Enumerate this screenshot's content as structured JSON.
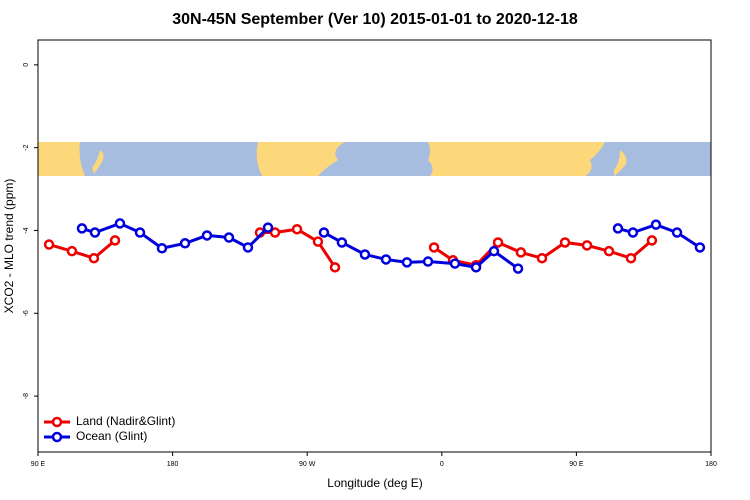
{
  "chart_data": {
    "type": "line",
    "title": "30N-45N September (Ver 10)   2015-01-01 to 2020-12-18",
    "x_label": "Longitude (deg E)",
    "y_label": "XCO2 - MLO trend (ppm)",
    "xlim": [
      90,
      540
    ],
    "ylim": [
      0.6,
      -9.35
    ],
    "xticks": [
      {
        "value": 90,
        "label": "90 E"
      },
      {
        "value": 180,
        "label": "180"
      },
      {
        "value": 270,
        "label": "90 W"
      },
      {
        "value": 360,
        "label": "0"
      },
      {
        "value": 450,
        "label": "90 E"
      },
      {
        "value": 540,
        "label": "180"
      }
    ],
    "yticks": [
      0,
      -2,
      -4,
      -6,
      -8
    ],
    "legend": "bottom-left",
    "series": [
      {
        "name": "Land (Nadir&Glint)",
        "color": "#ee0000",
        "x": [
          97.4,
          112.7,
          127.4,
          141.5,
          null,
          238.4,
          248.5,
          263.2,
          277.2,
          288.6,
          null,
          354.8,
          367.5,
          382.9,
          397.6,
          412.9,
          427,
          442.4,
          457.1,
          471.8,
          486.5,
          500.5
        ],
        "values": [
          -4.34,
          -4.5,
          -4.67,
          -4.24,
          null,
          -4.05,
          -4.05,
          -3.97,
          -4.27,
          -4.89,
          null,
          -4.41,
          -4.72,
          -4.84,
          -4.29,
          -4.53,
          -4.67,
          -4.29,
          -4.36,
          -4.5,
          -4.67,
          -4.24
        ]
      },
      {
        "name": "Ocean (Glint)",
        "color": "#0000dd",
        "x": [
          119.4,
          128.1,
          144.8,
          158.2,
          172.9,
          188.3,
          203,
          217.7,
          230.4,
          243.8,
          null,
          281.2,
          293.2,
          308.6,
          322.7,
          336.7,
          350.8,
          368.8,
          382.9,
          394.9,
          411,
          null,
          477.8,
          487.8,
          503.2,
          517.3,
          532.6
        ],
        "values": [
          -3.95,
          -4.05,
          -3.83,
          -4.05,
          -4.43,
          -4.31,
          -4.12,
          -4.17,
          -4.41,
          -3.93,
          null,
          -4.05,
          -4.29,
          -4.58,
          -4.7,
          -4.77,
          -4.75,
          -4.8,
          -4.89,
          -4.5,
          -4.92,
          null,
          -3.95,
          -4.05,
          -3.86,
          -4.05,
          -4.41
        ]
      }
    ]
  }
}
